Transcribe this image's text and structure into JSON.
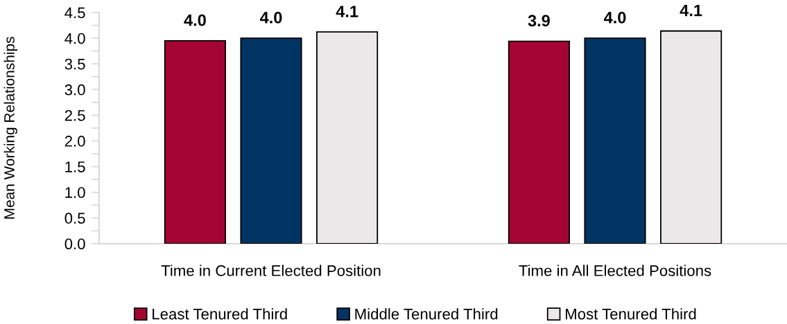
{
  "chart_data": {
    "type": "bar",
    "ylabel": "Mean Working Relationships",
    "categories": [
      "Time in Current Elected Position",
      "Time in All Elected Positions"
    ],
    "series": [
      {
        "name": "Least Tenured Third",
        "color": "#a50533",
        "values": [
          3.95,
          3.94
        ],
        "value_labels": [
          "4.0",
          "3.9"
        ]
      },
      {
        "name": "Middle Tenured Third",
        "color": "#003462",
        "values": [
          4.0,
          4.0
        ],
        "value_labels": [
          "4.0",
          "4.0"
        ]
      },
      {
        "name": "Most Tenured Third",
        "color": "#ebe8e9",
        "values": [
          4.12,
          4.14
        ],
        "value_labels": [
          "4.1",
          "4.1"
        ]
      }
    ],
    "ylim": [
      0,
      4.5
    ],
    "yticks": [
      {
        "value": 0,
        "label": "0.0"
      },
      {
        "value": 0.25,
        "label": null
      },
      0.5,
      {
        "value": 0.75,
        "label": null
      },
      {
        "value": 1,
        "label": "1.0"
      },
      {
        "value": 1.25,
        "label": null
      },
      1.5,
      {
        "value": 1.75,
        "label": null
      },
      {
        "value": 2,
        "label": "2.0"
      },
      {
        "value": 2.25,
        "label": null
      },
      2.5,
      {
        "value": 2.75,
        "label": null
      },
      {
        "value": 3,
        "label": "3.0"
      },
      {
        "value": 3.25,
        "label": null
      },
      3.5,
      {
        "value": 3.75,
        "label": null
      },
      {
        "value": 4,
        "label": "4.0"
      },
      {
        "value": 4.25,
        "label": null
      },
      4.5
    ],
    "legend": "bottom",
    "grid": false
  }
}
